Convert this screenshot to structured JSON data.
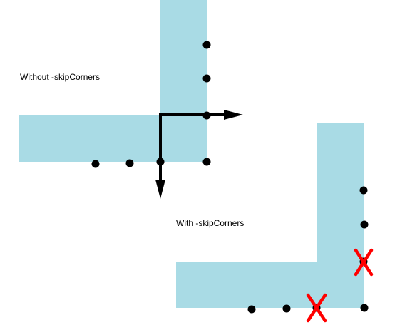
{
  "labels": {
    "without": "Without -skipCorners",
    "with": "With -skipCorners"
  },
  "colors": {
    "shape_fill": "#a9dbe5",
    "dot": "#000000",
    "arrow": "#000000",
    "skip_mark": "#ff0000"
  },
  "icons": {
    "dot": "point-marker",
    "arrow": "direction-arrow",
    "skip": "x-mark"
  }
}
